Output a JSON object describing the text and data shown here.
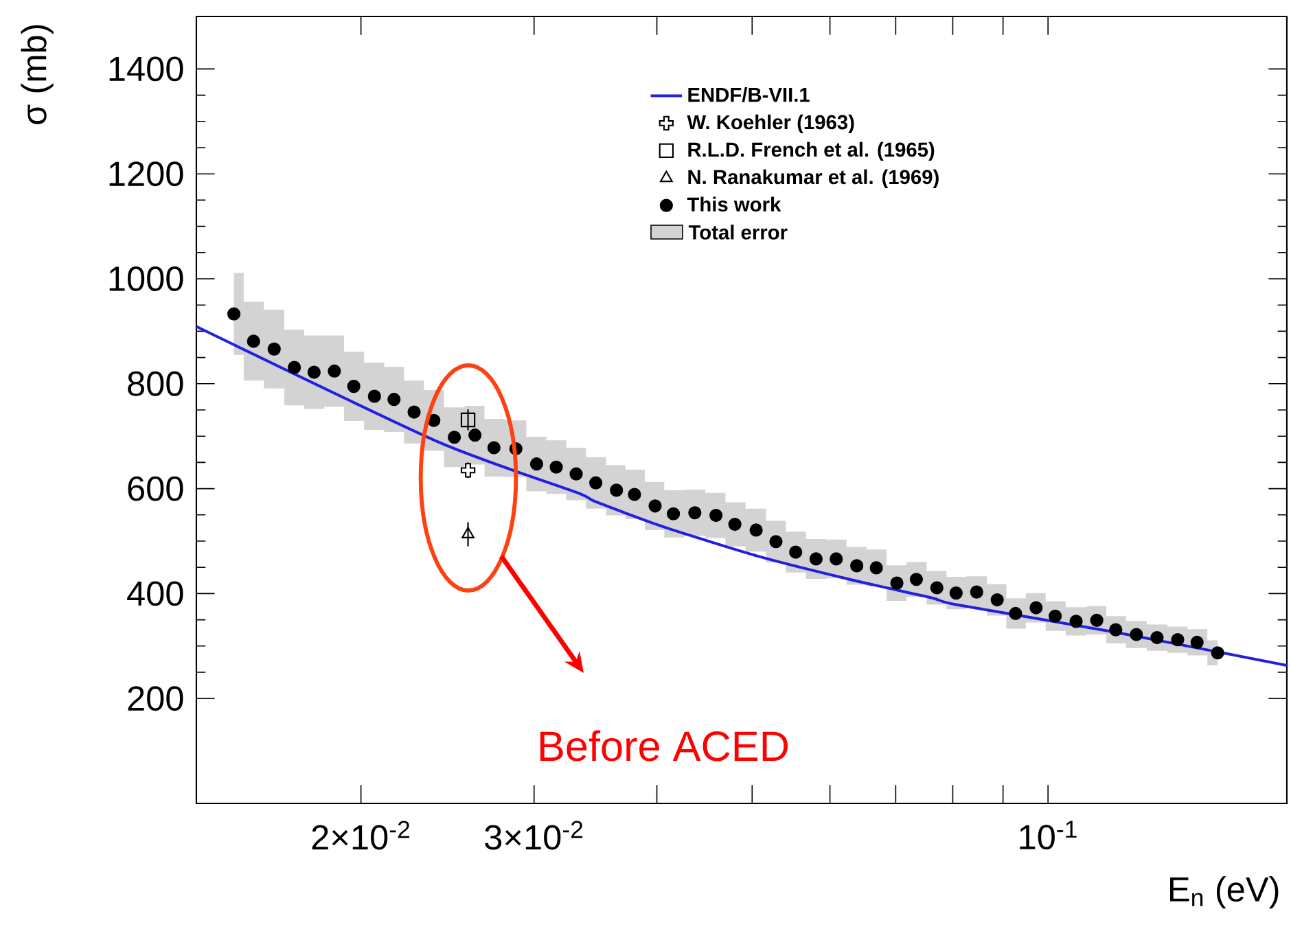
{
  "chart_data": {
    "type": "scatter",
    "xlabel": "E$_{n}$ (eV)",
    "ylabel": "σ (mb)",
    "log": "x",
    "xlim": [
      0.0136,
      0.175
    ],
    "ylim": [
      0,
      1500
    ],
    "xticks": [
      {
        "value": 0.02,
        "label": "2×10$^{-2}$"
      },
      {
        "value": 0.03,
        "label": "3×10$^{-2}$"
      },
      {
        "value": 0.04,
        "label": null
      },
      {
        "value": 0.05,
        "label": null
      },
      {
        "value": 0.06,
        "label": null
      },
      {
        "value": 0.07,
        "label": null
      },
      {
        "value": 0.08,
        "label": null
      },
      {
        "value": 0.09,
        "label": null
      },
      {
        "value": 0.1,
        "label": "10$^{-1}$"
      }
    ],
    "yticks": [
      200,
      400,
      600,
      800,
      1000,
      1200,
      1400
    ],
    "legend": "top right",
    "annotations": [
      "Before ACED",
      "Total error"
    ],
    "series": [
      {
        "name": "ENDF/B-VII.1",
        "type": "line",
        "color": "#2020e0",
        "marker": "none",
        "line_style": "solid",
        "x": [
          0.0136,
          0.02397,
          0.03311,
          0.03467,
          0.04066,
          0.05074,
          0.06285,
          0.0761,
          0.08063,
          0.1166,
          0.175
        ],
        "values": [
          909,
          689,
          593,
          575,
          527,
          471,
          427,
          392,
          379,
          327,
          263
        ]
      },
      {
        "name": "W. Koehler (1963)",
        "color": "#000000",
        "marker": "cross",
        "x": [
          0.0257
        ],
        "values": [
          635
        ],
        "errors": [
          15
        ]
      },
      {
        "name": "R.L.D. French et al. (1965)",
        "color": "#000000",
        "marker": "square",
        "x": [
          0.0257
        ],
        "values": [
          731
        ],
        "errors": [
          20
        ]
      },
      {
        "name": "N. Ranakumar et al. (1969)",
        "color": "#000000",
        "marker": "triangle",
        "x": [
          0.0257
        ],
        "values": [
          513
        ],
        "errors": [
          23
        ]
      },
      {
        "name": "This work",
        "color": "#000000",
        "marker": "circle",
        "x": [
          0.01485,
          0.01555,
          0.01632,
          0.01711,
          0.01792,
          0.01879,
          0.01967,
          0.02064,
          0.02161,
          0.02265,
          0.02372,
          0.02489,
          0.02612,
          0.02731,
          0.02875,
          0.03018,
          0.0316,
          0.03311,
          0.03467,
          0.03639,
          0.03796,
          0.03984,
          0.04158,
          0.04372,
          0.04594,
          0.04802,
          0.05047,
          0.05287,
          0.05537,
          0.05808,
          0.06089,
          0.06389,
          0.06689,
          0.07019,
          0.07347,
          0.07709,
          0.08063,
          0.08461,
          0.08878,
          0.09268,
          0.09725,
          0.1017,
          0.1068,
          0.1121,
          0.1172,
          0.123,
          0.1291,
          0.1355,
          0.1418,
          0.1488
        ],
        "values": [
          933,
          881,
          866,
          831,
          822,
          824,
          795,
          776,
          770,
          746,
          730,
          698,
          702,
          678,
          676,
          647,
          641,
          628,
          611,
          597,
          589,
          567,
          552,
          554,
          549,
          532,
          521,
          499,
          479,
          466,
          466,
          453,
          449,
          420,
          427,
          411,
          401,
          403,
          388,
          362,
          373,
          357,
          347,
          349,
          331,
          322,
          316,
          312,
          307,
          287
        ],
        "upper": [
          1011,
          956,
          941,
          903,
          892,
          892,
          861,
          840,
          832,
          806,
          788,
          755,
          758,
          733,
          730,
          699,
          692,
          678,
          660,
          645,
          636,
          613,
          597,
          598,
          592,
          574,
          562,
          539,
          518,
          504,
          503,
          489,
          484,
          454,
          460,
          443,
          432,
          433,
          418,
          391,
          401,
          385,
          374,
          376,
          357,
          348,
          341,
          337,
          332,
          311
        ],
        "lower": [
          855,
          806,
          791,
          759,
          752,
          756,
          729,
          712,
          708,
          686,
          672,
          641,
          646,
          623,
          622,
          595,
          590,
          578,
          562,
          549,
          542,
          521,
          507,
          510,
          506,
          490,
          480,
          459,
          440,
          428,
          429,
          417,
          414,
          386,
          394,
          379,
          370,
          373,
          358,
          333,
          345,
          329,
          320,
          322,
          305,
          296,
          291,
          287,
          282,
          263
        ]
      }
    ]
  }
}
